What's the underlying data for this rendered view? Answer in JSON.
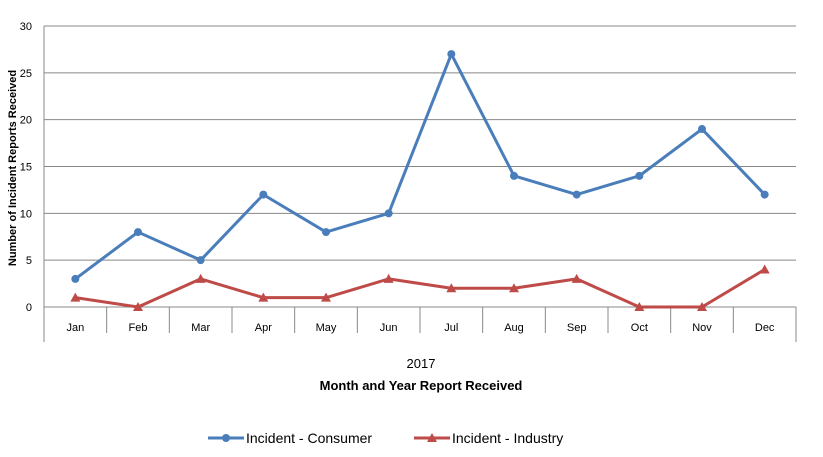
{
  "chart_data": {
    "type": "line",
    "categories": [
      "Jan",
      "Feb",
      "Mar",
      "Apr",
      "May",
      "Jun",
      "Jul",
      "Aug",
      "Sep",
      "Oct",
      "Nov",
      "Dec"
    ],
    "group_label": "2017",
    "xlabel": "Month and Year Report Received",
    "ylabel": "Number of Incident Reports Received",
    "ylim": [
      0,
      30
    ],
    "yticks": [
      0,
      5,
      10,
      15,
      20,
      25,
      30
    ],
    "grid": true,
    "legend_position": "bottom",
    "series": [
      {
        "name": "Incident - Consumer",
        "color": "#4a7ebb",
        "marker": "circle",
        "values": [
          3,
          8,
          5,
          12,
          8,
          10,
          27,
          14,
          12,
          14,
          19,
          12
        ]
      },
      {
        "name": "Incident - Industry",
        "color": "#be4b48",
        "marker": "triangle",
        "values": [
          1,
          0,
          3,
          1,
          1,
          3,
          2,
          2,
          3,
          0,
          0,
          4
        ]
      }
    ]
  }
}
